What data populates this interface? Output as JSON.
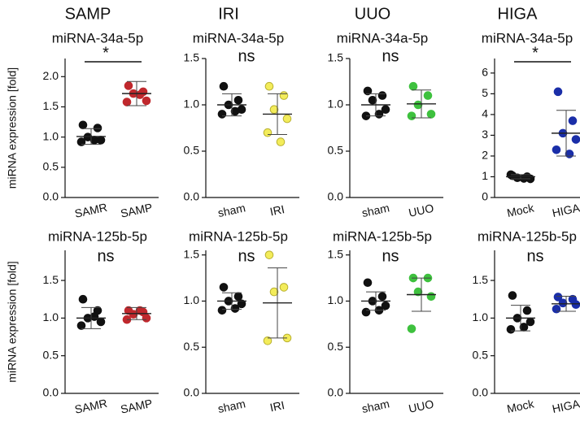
{
  "column_titles": [
    "SAMP",
    "IRI",
    "UUO",
    "HIGA"
  ],
  "chart_data": [
    {
      "type": "dotplot",
      "title": "miRNA-34a-5p",
      "y_label": "miRNA expression [fold]",
      "annotation": "*",
      "bracket": true,
      "categories": [
        "SAMR",
        "SAMP"
      ],
      "ylim": [
        0,
        2.3
      ],
      "yticks": [
        {
          "value": 0,
          "label": "0.0"
        },
        0.5,
        {
          "value": 1,
          "label": "1.0"
        },
        1.5,
        {
          "value": 2,
          "label": "2.0"
        }
      ],
      "groups": [
        {
          "color": "#111111",
          "values": [
            1.2,
            1.15,
            1.0,
            0.95,
            0.92,
            0.95
          ],
          "mean": 1.01,
          "sd": 0.13
        },
        {
          "color": "#c0282d",
          "values": [
            1.85,
            1.75,
            1.72,
            1.6,
            1.58,
            1.7
          ],
          "mean": 1.72,
          "sd": 0.2
        }
      ]
    },
    {
      "type": "dotplot",
      "title": "miRNA-34a-5p",
      "annotation": "ns",
      "bracket": false,
      "categories": [
        "sham",
        "IRI"
      ],
      "ylim": [
        0,
        1.5
      ],
      "yticks": [
        {
          "value": 0,
          "label": "0.0"
        },
        0.5,
        {
          "value": 1,
          "label": "1.0"
        },
        1.5
      ],
      "groups": [
        {
          "color": "#111111",
          "values": [
            1.2,
            1.05,
            1.0,
            0.95,
            0.9,
            0.93
          ],
          "mean": 1.0,
          "sd": 0.12
        },
        {
          "color": "#f3ec5a",
          "values": [
            1.2,
            1.1,
            0.95,
            0.85,
            0.7,
            0.6
          ],
          "mean": 0.9,
          "sd": 0.22
        }
      ]
    },
    {
      "type": "dotplot",
      "title": "miRNA-34a-5p",
      "annotation": "ns",
      "bracket": false,
      "categories": [
        "sham",
        "UUO"
      ],
      "ylim": [
        0,
        1.5
      ],
      "yticks": [
        {
          "value": 0,
          "label": "0.0"
        },
        0.5,
        {
          "value": 1,
          "label": "1.0"
        },
        1.5
      ],
      "groups": [
        {
          "color": "#111111",
          "values": [
            1.15,
            1.1,
            1.05,
            0.95,
            0.88,
            0.9
          ],
          "mean": 1.0,
          "sd": 0.12
        },
        {
          "color": "#3ec13e",
          "values": [
            1.2,
            1.1,
            1.0,
            0.9,
            0.88
          ],
          "mean": 1.01,
          "sd": 0.15
        }
      ]
    },
    {
      "type": "dotplot",
      "title": "miRNA-34a-5p",
      "annotation": "*",
      "bracket": true,
      "categories": [
        "Mock",
        "HIGA"
      ],
      "ylim": [
        0,
        6.7
      ],
      "yticks": [
        0,
        1,
        2,
        3,
        4,
        5,
        6
      ],
      "groups": [
        {
          "color": "#111111",
          "values": [
            1.05,
            1.0,
            0.95,
            0.9,
            1.1,
            0.92
          ],
          "mean": 1.0,
          "sd": 0.1
        },
        {
          "color": "#1a2ea8",
          "values": [
            5.1,
            3.7,
            3.1,
            2.8,
            2.3,
            2.1
          ],
          "mean": 3.1,
          "sd": 1.1
        }
      ]
    },
    {
      "type": "dotplot",
      "title": "miRNA-125b-5p",
      "y_label": "miRNA expression [fold]",
      "annotation": "ns",
      "bracket": false,
      "categories": [
        "SAMR",
        "SAMP"
      ],
      "ylim": [
        0,
        1.9
      ],
      "yticks": [
        {
          "value": 0,
          "label": "0.0"
        },
        0.5,
        {
          "value": 1,
          "label": "1.0"
        },
        1.5
      ],
      "groups": [
        {
          "color": "#111111",
          "values": [
            1.25,
            1.1,
            1.0,
            0.95,
            0.9,
            1.02
          ],
          "mean": 1.0,
          "sd": 0.14
        },
        {
          "color": "#c0282d",
          "values": [
            1.1,
            1.08,
            1.05,
            1.0,
            0.98,
            1.1
          ],
          "mean": 1.06,
          "sd": 0.08
        }
      ]
    },
    {
      "type": "dotplot",
      "title": "miRNA-125b-5p",
      "annotation": "ns",
      "bracket": false,
      "categories": [
        "sham",
        "IRI"
      ],
      "ylim": [
        0,
        1.55
      ],
      "yticks": [
        {
          "value": 0,
          "label": "0.0"
        },
        0.5,
        {
          "value": 1,
          "label": "1.0"
        },
        1.5
      ],
      "groups": [
        {
          "color": "#111111",
          "values": [
            1.15,
            1.05,
            1.0,
            0.97,
            0.9,
            0.92
          ],
          "mean": 1.0,
          "sd": 0.09
        },
        {
          "color": "#f3ec5a",
          "values": [
            1.5,
            1.15,
            1.1,
            0.6,
            0.57
          ],
          "mean": 0.98,
          "sd": 0.38
        }
      ]
    },
    {
      "type": "dotplot",
      "title": "miRNA-125b-5p",
      "annotation": "ns",
      "bracket": false,
      "categories": [
        "sham",
        "UUO"
      ],
      "ylim": [
        0,
        1.55
      ],
      "yticks": [
        {
          "value": 0,
          "label": "0.0"
        },
        0.5,
        {
          "value": 1,
          "label": "1.0"
        },
        1.5
      ],
      "groups": [
        {
          "color": "#111111",
          "values": [
            1.2,
            1.05,
            1.0,
            0.95,
            0.88,
            0.9
          ],
          "mean": 1.0,
          "sd": 0.1
        },
        {
          "color": "#3ec13e",
          "values": [
            1.25,
            1.25,
            1.1,
            1.05,
            0.7
          ],
          "mean": 1.07,
          "sd": 0.18
        }
      ]
    },
    {
      "type": "dotplot",
      "title": "miRNA-125b-5p",
      "annotation": "ns",
      "bracket": false,
      "categories": [
        "Mock",
        "HIGA"
      ],
      "ylim": [
        0,
        1.9
      ],
      "yticks": [
        {
          "value": 0,
          "label": "0.0"
        },
        0.5,
        {
          "value": 1,
          "label": "1.0"
        },
        1.5
      ],
      "groups": [
        {
          "color": "#111111",
          "values": [
            1.3,
            1.1,
            1.0,
            0.95,
            0.85,
            0.88
          ],
          "mean": 1.0,
          "sd": 0.17
        },
        {
          "color": "#1a2ea8",
          "values": [
            1.28,
            1.25,
            1.2,
            1.18,
            1.12
          ],
          "mean": 1.19,
          "sd": 0.1
        }
      ]
    }
  ]
}
